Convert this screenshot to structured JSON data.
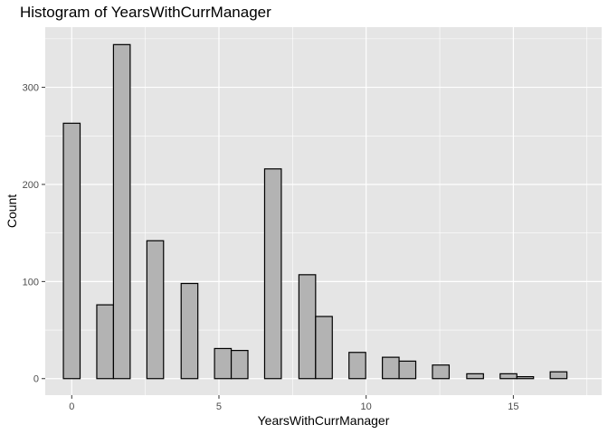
{
  "chart_data": {
    "type": "bar",
    "title": "Histogram of YearsWithCurrManager",
    "xlabel": "YearsWithCurrManager",
    "ylabel": "Count",
    "xlim": [
      -0.9,
      18.0
    ],
    "ylim": [
      -17,
      362
    ],
    "x_ticks": [
      0,
      5,
      10,
      15
    ],
    "y_ticks": [
      0,
      100,
      200,
      300
    ],
    "bin_width": 0.567,
    "bins": [
      {
        "x": 0.0,
        "count": 263
      },
      {
        "x": 1.134,
        "count": 76
      },
      {
        "x": 1.701,
        "count": 344
      },
      {
        "x": 2.835,
        "count": 142
      },
      {
        "x": 4.0,
        "count": 98
      },
      {
        "x": 5.134,
        "count": 31
      },
      {
        "x": 5.701,
        "count": 29
      },
      {
        "x": 6.835,
        "count": 216
      },
      {
        "x": 8.0,
        "count": 107
      },
      {
        "x": 8.567,
        "count": 64
      },
      {
        "x": 9.701,
        "count": 27
      },
      {
        "x": 10.835,
        "count": 22
      },
      {
        "x": 11.402,
        "count": 18
      },
      {
        "x": 12.536,
        "count": 14
      },
      {
        "x": 13.701,
        "count": 5
      },
      {
        "x": 14.835,
        "count": 5
      },
      {
        "x": 15.402,
        "count": 2
      },
      {
        "x": 16.536,
        "count": 7
      }
    ],
    "grid": true,
    "colors": {
      "panel": "#e5e5e5",
      "grid": "#ffffff",
      "bar_fill": "#b3b3b3",
      "bar_stroke": "#000000"
    }
  }
}
